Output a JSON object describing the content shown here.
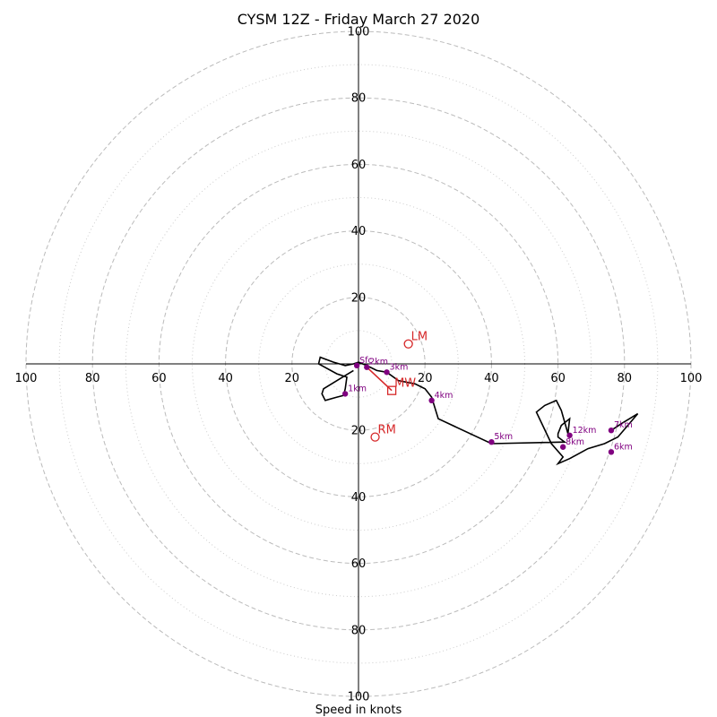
{
  "chart_data": {
    "type": "scatter",
    "title": "CYSM 12Z - Friday March 27 2020",
    "xlabel": "Speed in knots",
    "ylabel": "",
    "xlim": [
      -100,
      100
    ],
    "ylim": [
      -100,
      100
    ],
    "grid": true,
    "major_rings": [
      20,
      40,
      60,
      80,
      100
    ],
    "minor_rings": [
      10,
      30,
      50,
      70,
      90
    ],
    "x_ticks": [
      "100",
      "80",
      "60",
      "40",
      "20",
      "20",
      "40",
      "60",
      "80",
      "100"
    ],
    "x_tick_values": [
      -100,
      -80,
      -60,
      -40,
      -20,
      20,
      40,
      60,
      80,
      100
    ],
    "y_ticks": [
      "100",
      "80",
      "60",
      "40",
      "20",
      "20",
      "40",
      "60",
      "80",
      "100"
    ],
    "y_tick_values": [
      100,
      80,
      60,
      40,
      20,
      -20,
      -40,
      -60,
      -80,
      -100
    ],
    "hodograph_trace": {
      "x": [
        -1.5,
        -10.5,
        -11,
        -10,
        -6.5,
        -4.5,
        -4,
        -3.5,
        -6.5,
        -12,
        -11.5,
        -7.5,
        -4,
        -1.5,
        0,
        2.5,
        5.5,
        8.5,
        12,
        17,
        20,
        22,
        24,
        40,
        62,
        60,
        60,
        61,
        63.5,
        63,
        61,
        59.5,
        56,
        53.5,
        58,
        61.5,
        60,
        63.5,
        69,
        74,
        78,
        84,
        79,
        76
      ],
      "y": [
        -2,
        -7.5,
        -9,
        -11,
        -10,
        -9.5,
        -7.5,
        -4,
        -3,
        0,
        2,
        0.5,
        -0.5,
        0,
        0.5,
        -0.5,
        -2,
        -2.5,
        -5,
        -6,
        -7.5,
        -10,
        -16.5,
        -24,
        -23.5,
        -22,
        -21,
        -18.5,
        -16.5,
        -21,
        -14,
        -11,
        -12.5,
        -14.5,
        -24,
        -28,
        -30,
        -28.5,
        -25.5,
        -24,
        -22,
        -15,
        -18,
        -20
      ]
    },
    "height_markers": [
      {
        "label": "Sfc",
        "x": -0.5,
        "y": -0.5
      },
      {
        "label": "1km",
        "x": -4,
        "y": -9
      },
      {
        "label": "2km",
        "x": 2.5,
        "y": -1
      },
      {
        "label": "3km",
        "x": 8.5,
        "y": -2.5
      },
      {
        "label": "4km",
        "x": 22,
        "y": -11
      },
      {
        "label": "5km",
        "x": 40,
        "y": -23.5
      },
      {
        "label": "6km",
        "x": 76,
        "y": -26.5
      },
      {
        "label": "7km",
        "x": 76,
        "y": -20
      },
      {
        "label": "8km",
        "x": 61.5,
        "y": -25
      },
      {
        "label": "12km",
        "x": 63.5,
        "y": -21.5
      }
    ],
    "storm_motion": [
      {
        "label": "LM",
        "marker": "circle",
        "x": 15,
        "y": 6
      },
      {
        "label": "RM",
        "marker": "circle",
        "x": 5,
        "y": -22
      },
      {
        "label": "MW",
        "marker": "square",
        "x": 10,
        "y": -8
      }
    ],
    "storm_vector": {
      "from": [
        2.5,
        -1
      ],
      "to": [
        10,
        -8
      ]
    },
    "colors": {
      "trace": "#000000",
      "height_markers": "#800080",
      "storm_motion": "#d62728",
      "rings": "#bbbbbb"
    }
  }
}
